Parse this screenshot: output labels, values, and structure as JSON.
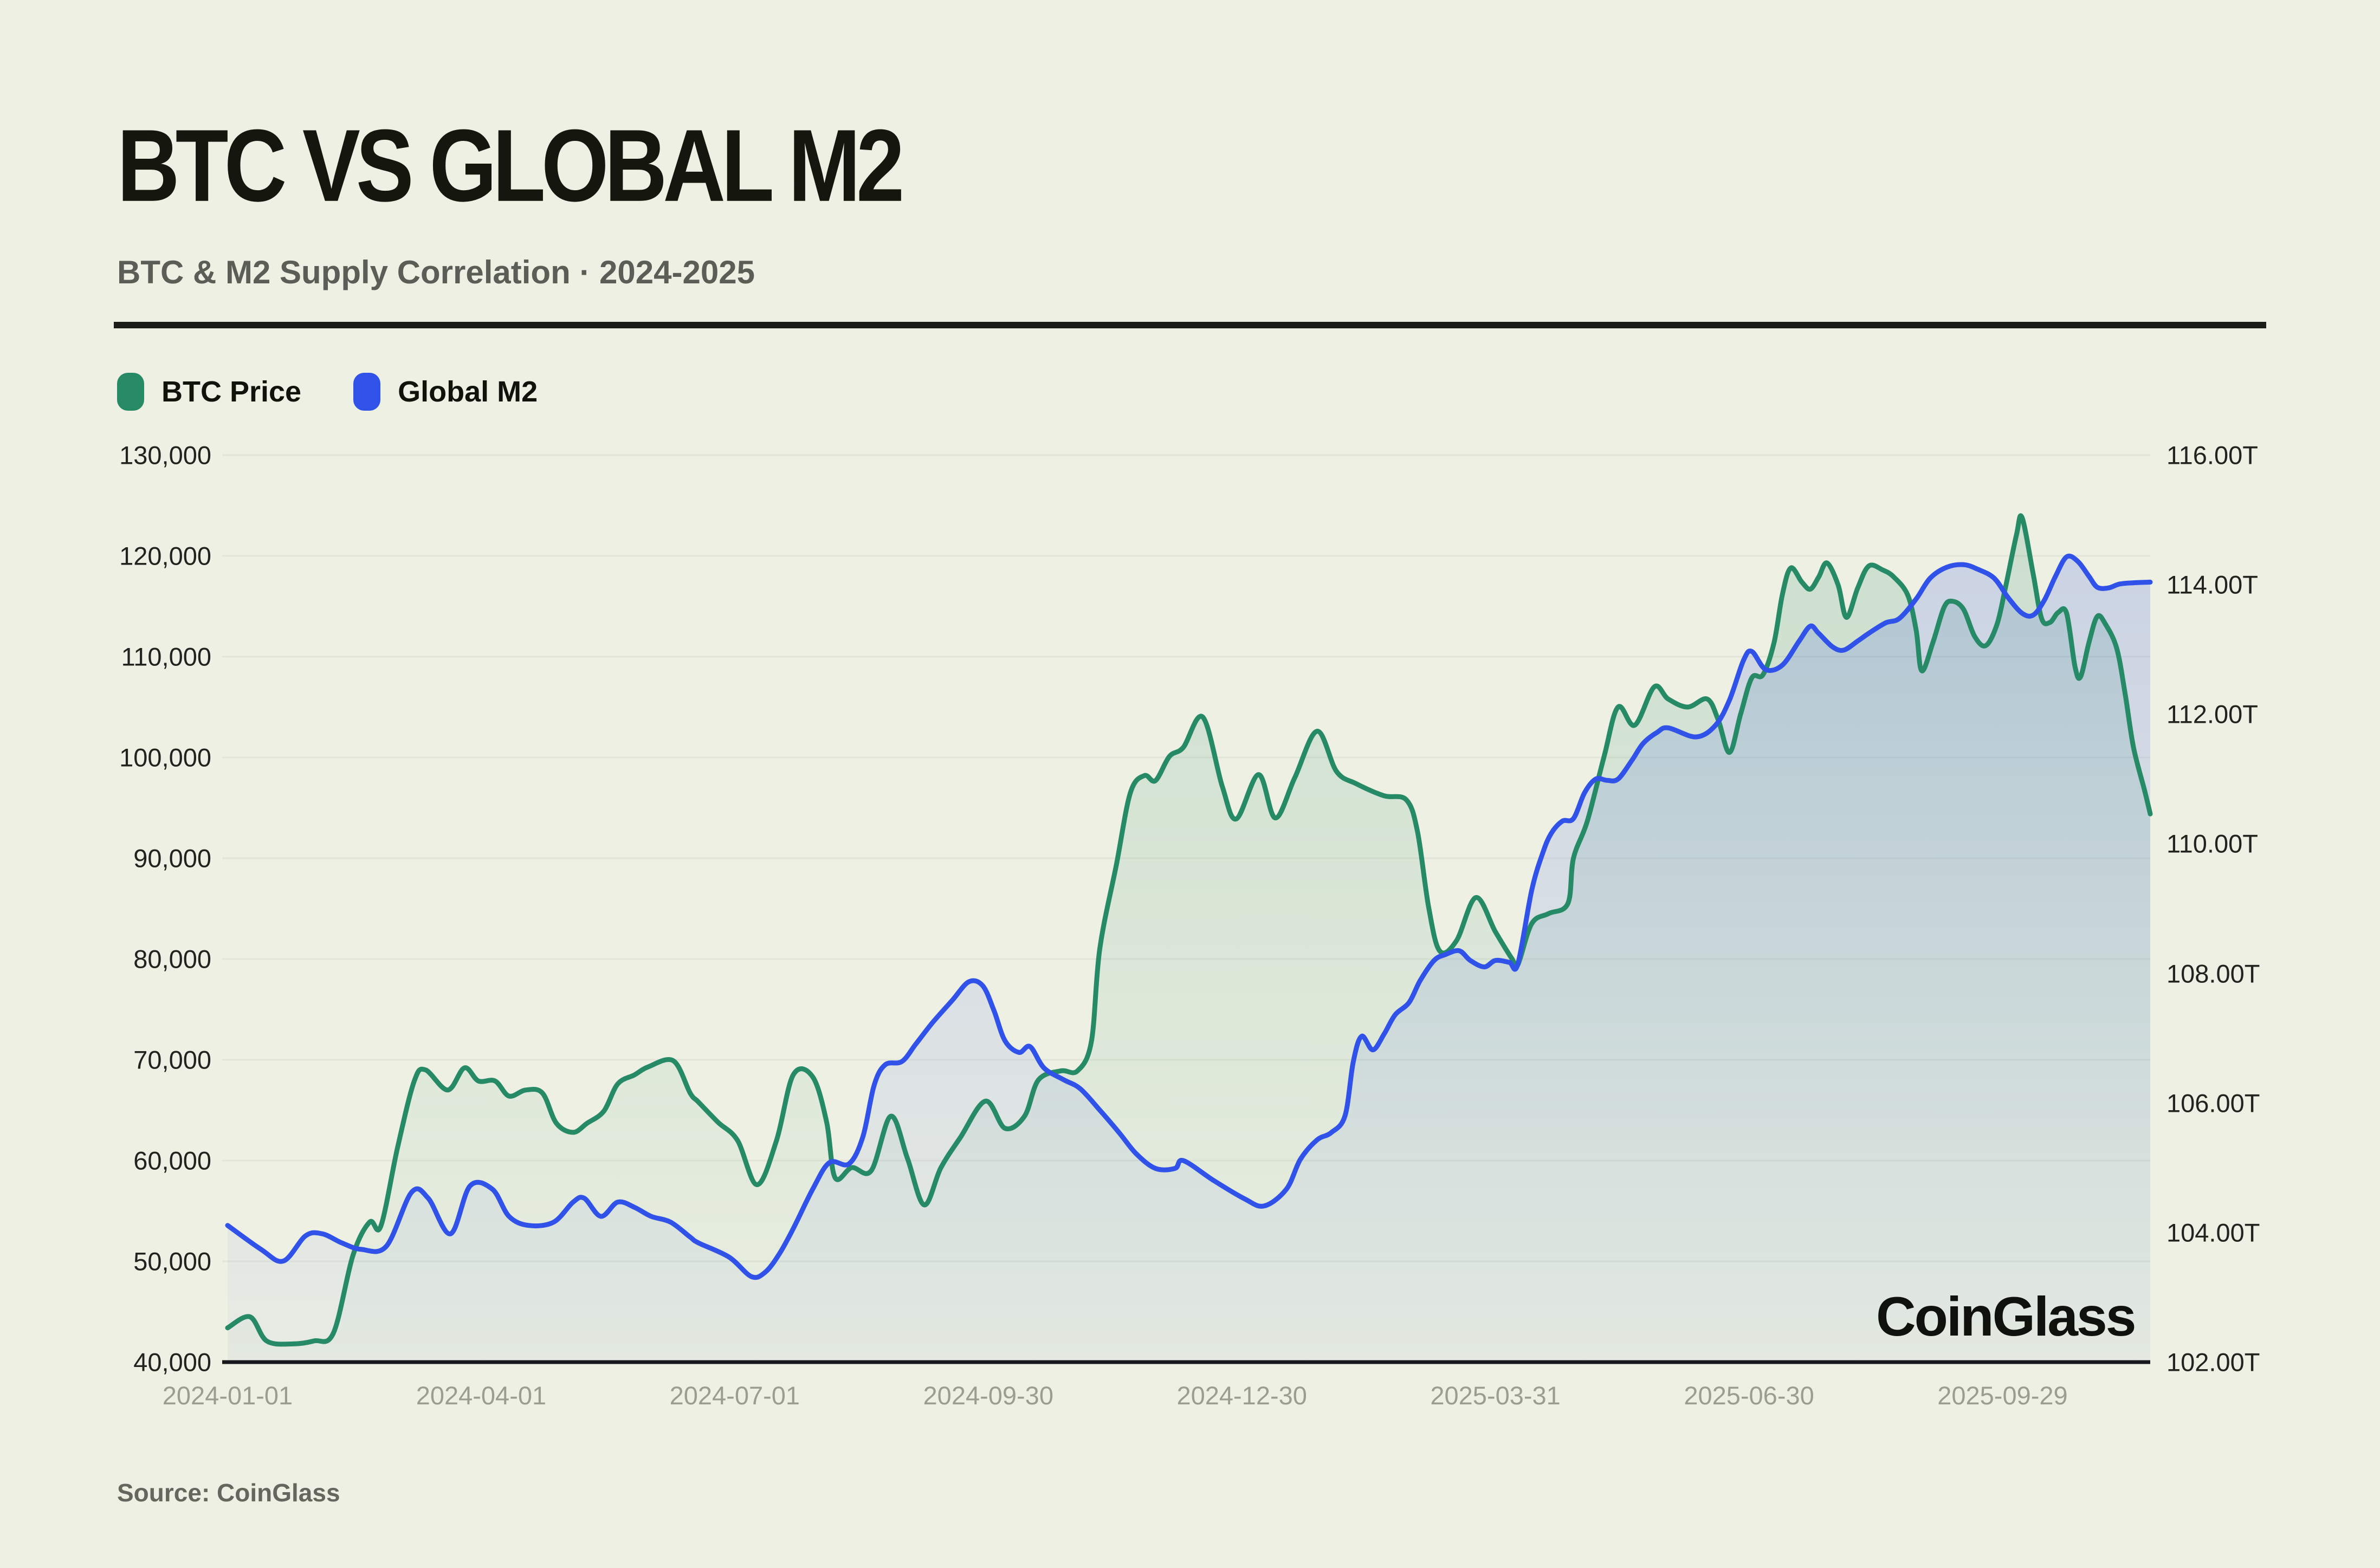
{
  "header": {
    "title": "BTC VS GLOBAL M2",
    "subtitle": "BTC & M2 Supply Correlation · 2024-2025"
  },
  "legend": {
    "items": [
      {
        "label": "BTC Price",
        "color": "#278A66"
      },
      {
        "label": "Global M2",
        "color": "#3052E8"
      }
    ]
  },
  "watermark": "CoinGlass",
  "source": {
    "text": "Source: CoinGlass"
  },
  "colors": {
    "background": "#EDF0E3",
    "grid": "#e2e5d8",
    "axis_line": "#17191c",
    "title": "#15170f",
    "subtitle": "#5b5e56",
    "x_tick": "#9a9d92",
    "y_tick": "#20231e",
    "btc_line": "#278A66",
    "m2_line": "#3052E8"
  },
  "chart_data": {
    "type": "line",
    "title": "BTC VS GLOBAL M2",
    "subtitle": "BTC & M2 Supply Correlation · 2024-2025",
    "start_date": "2024-01-01",
    "days_span": 690,
    "x_ticks": [
      {
        "label": "2024-01-01",
        "day": 0
      },
      {
        "label": "2024-04-01",
        "day": 91
      },
      {
        "label": "2024-07-01",
        "day": 182
      },
      {
        "label": "2024-09-30",
        "day": 273
      },
      {
        "label": "2024-12-30",
        "day": 364
      },
      {
        "label": "2025-03-31",
        "day": 455
      },
      {
        "label": "2025-06-30",
        "day": 546
      },
      {
        "label": "2025-09-29",
        "day": 637
      }
    ],
    "y_axis_left": {
      "title": "BTC Price (USD)",
      "min": 40000,
      "max": 130000,
      "tick_labels": [
        "130,000",
        "120,000",
        "110,000",
        "100,000",
        "90,000",
        "80,000",
        "70,000",
        "60,000",
        "50,000",
        "40,000"
      ]
    },
    "y_axis_right": {
      "title": "Global M2 (USD)",
      "min": 102,
      "max": 116,
      "tick_labels": [
        "116.00T",
        "114.00T",
        "112.00T",
        "110.00T",
        "108.00T",
        "106.00T",
        "104.00T",
        "102.00T"
      ]
    },
    "legend_position": "top-left",
    "grid": true,
    "series": [
      {
        "name": "BTC Price",
        "axis": "left",
        "color": "#278A66",
        "unit": "thousand USD",
        "days": [
          0,
          8,
          14,
          23,
          31,
          38,
          45,
          51,
          55,
          61,
          67,
          71,
          79,
          85,
          90,
          96,
          101,
          107,
          113,
          118,
          124,
          129,
          135,
          140,
          146,
          151,
          160,
          166,
          169,
          176,
          183,
          190,
          197,
          203,
          210,
          215,
          218,
          224,
          231,
          238,
          244,
          250,
          256,
          263,
          272,
          279,
          286,
          291,
          299,
          305,
          310,
          313,
          319,
          324,
          329,
          333,
          338,
          343,
          350,
          357,
          362,
          370,
          376,
          383,
          391,
          398,
          405,
          415,
          423,
          427,
          431,
          435,
          441,
          448,
          455,
          461,
          463,
          468,
          474,
          481,
          483,
          488,
          494,
          499,
          505,
          512,
          517,
          524,
          531,
          535,
          539,
          543,
          547,
          551,
          555,
          558,
          561,
          565,
          568,
          571,
          574,
          578,
          581,
          585,
          589,
          594,
          598,
          603,
          606,
          608,
          612,
          616,
          619,
          623,
          627,
          631,
          635,
          638,
          642,
          644,
          648,
          651,
          654,
          657,
          660,
          663,
          665,
          668,
          671,
          674,
          678,
          681,
          684,
          688,
          690
        ],
        "values": [
          43.4,
          44.5,
          42.1,
          41.8,
          42.1,
          42.9,
          50.6,
          53.9,
          53.5,
          61.3,
          67.9,
          69.0,
          67.0,
          69.2,
          67.9,
          67.9,
          66.4,
          67.0,
          66.7,
          63.7,
          62.8,
          63.7,
          64.9,
          67.6,
          68.5,
          69.3,
          69.9,
          66.7,
          65.8,
          63.8,
          62.0,
          57.6,
          62.0,
          68.5,
          68.3,
          63.8,
          58.3,
          59.3,
          59.0,
          64.4,
          60.2,
          55.6,
          59.3,
          62.3,
          65.9,
          63.2,
          64.4,
          68.0,
          68.9,
          68.9,
          71.8,
          81.0,
          89.4,
          96.5,
          98.2,
          97.7,
          100.1,
          101.0,
          104.0,
          97.1,
          93.9,
          98.3,
          94.0,
          98.0,
          102.6,
          98.6,
          97.4,
          96.2,
          95.8,
          92.7,
          85.2,
          80.8,
          81.8,
          86.1,
          82.7,
          80.0,
          79.4,
          83.5,
          84.5,
          85.5,
          90.0,
          93.7,
          100.1,
          105.0,
          103.2,
          107.0,
          105.8,
          105.0,
          105.8,
          103.7,
          100.5,
          104.3,
          107.9,
          108.2,
          111.4,
          116.2,
          118.8,
          117.4,
          116.7,
          117.9,
          119.3,
          117.1,
          113.9,
          116.8,
          119.0,
          118.6,
          117.9,
          116.1,
          112.6,
          108.6,
          111.4,
          114.9,
          115.5,
          114.7,
          112.0,
          111.1,
          113.2,
          116.8,
          122.1,
          123.8,
          118.2,
          113.8,
          113.4,
          114.4,
          114.3,
          109.0,
          108.0,
          111.4,
          114.0,
          113.2,
          110.8,
          106.3,
          101.0,
          96.7,
          94.4
        ]
      },
      {
        "name": "Global M2",
        "axis": "right",
        "color": "#3052E8",
        "unit": "trillion USD",
        "days": [
          0,
          12,
          20,
          28,
          34,
          41,
          48,
          57,
          66,
          72,
          80,
          87,
          95,
          101,
          108,
          117,
          124,
          128,
          134,
          140,
          146,
          152,
          159,
          166,
          169,
          180,
          188,
          193,
          198,
          203,
          210,
          216,
          223,
          228,
          232,
          236,
          242,
          247,
          253,
          260,
          266,
          271,
          275,
          279,
          284,
          288,
          293,
          300,
          306,
          313,
          320,
          326,
          333,
          340,
          343,
          354,
          365,
          372,
          380,
          385,
          391,
          396,
          401,
          404,
          407,
          411,
          415,
          419,
          424,
          428,
          433,
          437,
          442,
          446,
          451,
          455,
          460,
          463,
          468,
          472,
          475,
          479,
          483,
          487,
          491,
          495,
          499,
          504,
          508,
          513,
          517,
          527,
          534,
          539,
          544,
          547,
          552,
          558,
          564,
          568,
          571,
          576,
          580,
          585,
          589,
          595,
          600,
          606,
          611,
          617,
          623,
          628,
          634,
          639,
          644,
          648,
          652,
          656,
          660,
          664,
          668,
          671,
          675,
          679,
          684,
          690
        ],
        "values": [
          104.11,
          103.74,
          103.56,
          103.95,
          103.98,
          103.84,
          103.74,
          103.79,
          104.62,
          104.53,
          103.98,
          104.72,
          104.67,
          104.25,
          104.11,
          104.16,
          104.47,
          104.53,
          104.25,
          104.47,
          104.39,
          104.25,
          104.16,
          103.93,
          103.84,
          103.62,
          103.32,
          103.39,
          103.67,
          104.06,
          104.67,
          105.08,
          105.06,
          105.48,
          106.27,
          106.59,
          106.64,
          106.91,
          107.24,
          107.58,
          107.87,
          107.81,
          107.43,
          106.96,
          106.78,
          106.87,
          106.54,
          106.36,
          106.22,
          105.89,
          105.54,
          105.22,
          104.99,
          104.99,
          105.11,
          104.8,
          104.52,
          104.41,
          104.67,
          105.13,
          105.43,
          105.54,
          105.8,
          106.64,
          107.03,
          106.82,
          107.06,
          107.36,
          107.55,
          107.89,
          108.2,
          108.29,
          108.35,
          108.2,
          108.1,
          108.2,
          108.17,
          108.14,
          109.28,
          109.86,
          110.16,
          110.35,
          110.39,
          110.79,
          111.0,
          110.98,
          111.0,
          111.29,
          111.55,
          111.72,
          111.79,
          111.65,
          111.83,
          112.22,
          112.83,
          112.97,
          112.69,
          112.76,
          113.13,
          113.36,
          113.25,
          113.04,
          112.99,
          113.13,
          113.25,
          113.41,
          113.48,
          113.78,
          114.1,
          114.27,
          114.31,
          114.24,
          114.1,
          113.8,
          113.56,
          113.53,
          113.76,
          114.13,
          114.43,
          114.36,
          114.13,
          113.96,
          113.95,
          114.01,
          114.03,
          114.04
        ]
      }
    ]
  }
}
